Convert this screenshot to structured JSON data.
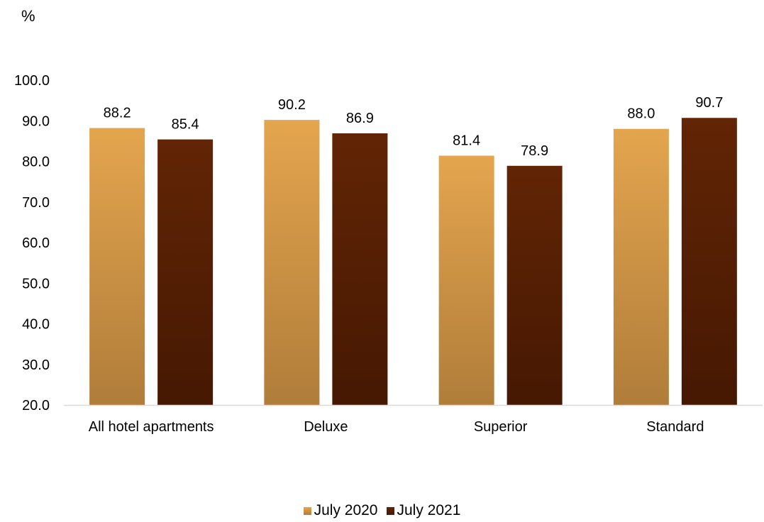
{
  "chart_data": {
    "type": "bar",
    "unit_label": "%",
    "categories": [
      "All hotel apartments",
      "Deluxe",
      "Superior",
      "Standard"
    ],
    "series": [
      {
        "name": "July 2020",
        "values": [
          88.2,
          90.2,
          81.4,
          88.0
        ],
        "value_labels": [
          "88.2",
          "90.2",
          "81.4",
          "88.0"
        ],
        "color_top": "#E4A54E",
        "color_bottom": "#B07D3A"
      },
      {
        "name": "July 2021",
        "values": [
          85.4,
          86.9,
          78.9,
          90.7
        ],
        "value_labels": [
          "85.4",
          "86.9",
          "78.9",
          "90.7"
        ],
        "color_top": "#622505",
        "color_bottom": "#461802"
      }
    ],
    "y_ticks": [
      "20.0",
      "30.0",
      "40.0",
      "50.0",
      "60.0",
      "70.0",
      "80.0",
      "90.0",
      "100.0"
    ],
    "ylim": [
      20,
      100
    ],
    "grid": false,
    "legend_position": "bottom"
  }
}
